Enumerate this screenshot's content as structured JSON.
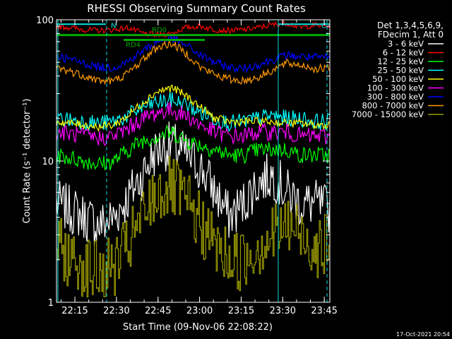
{
  "chart_data": {
    "type": "line",
    "title": "RHESSI Observing Summary Count Rates",
    "xlabel": "Start Time (09-Nov-06 22:08:22)",
    "ylabel": "Count Rate (s⁻¹ detector⁻¹)",
    "y_scale": "log",
    "ylim": [
      1,
      100
    ],
    "xlim": [
      "22:08:22",
      "23:47:00"
    ],
    "y_ticks": [
      "1",
      "10",
      "100"
    ],
    "x_ticks": [
      "22:15",
      "22:30",
      "22:45",
      "23:00",
      "23:15",
      "23:30",
      "23:45"
    ],
    "info_lines": [
      "Det 1,3,4,5,6,9,",
      "FDecim 1, Att 0"
    ],
    "footer": "17-Oct-2021 20:54",
    "flags": {
      "rd0": {
        "label": "RD0",
        "at": "22:42"
      },
      "rd4": {
        "label": "RD4",
        "at": "22:36"
      },
      "n": {
        "label": "N",
        "at": "22:29"
      },
      "c": {
        "label": "C",
        "at": "23:43"
      }
    },
    "series": [
      {
        "name": "3 - 6 keV",
        "color": "#ffffff",
        "shape": "orbit-low",
        "values": [
          5,
          4.5,
          4,
          3.5,
          4,
          5.5,
          8,
          12,
          13,
          11,
          9,
          6,
          4,
          5,
          7,
          8,
          6,
          5,
          5,
          4.5
        ]
      },
      {
        "name": "6 - 12 keV",
        "color": "#ff0000",
        "shape": "top",
        "values": [
          90,
          88,
          85,
          84,
          85,
          88,
          80,
          78,
          80,
          88,
          90,
          85,
          84,
          85,
          88,
          92,
          95,
          88,
          92,
          90
        ]
      },
      {
        "name": "12 - 25 keV",
        "color": "#00ff00",
        "shape": "noisy",
        "values": [
          11,
          10.5,
          10,
          9.5,
          10,
          12,
          14,
          15,
          16,
          14,
          13,
          12,
          11,
          11,
          12,
          12,
          12,
          11,
          11,
          11
        ]
      },
      {
        "name": "25 - 50 keV",
        "color": "#00ffff",
        "shape": "noisy",
        "values": [
          20,
          19.5,
          19,
          18.5,
          19,
          21,
          24,
          26,
          27,
          25,
          22,
          20,
          18.5,
          19,
          20,
          21,
          20,
          20,
          19,
          19
        ]
      },
      {
        "name": "50 - 100 keV",
        "color": "#ffff00",
        "shape": "dome",
        "values": [
          19,
          18.5,
          18,
          17.5,
          18,
          21,
          26,
          31,
          33,
          29,
          24,
          20,
          19,
          19,
          19,
          19,
          18.5,
          18.5,
          18,
          18
        ]
      },
      {
        "name": "100 - 300 keV",
        "color": "#ff00ff",
        "shape": "noisy",
        "values": [
          16,
          15.5,
          15,
          14.5,
          15,
          17,
          20,
          22,
          23,
          21,
          18,
          16,
          15,
          15,
          16,
          16,
          16,
          15,
          15,
          15
        ]
      },
      {
        "name": "300 - 800 keV",
        "color": "#0000ff",
        "shape": "dome",
        "values": [
          56,
          52,
          49,
          46,
          46,
          51,
          60,
          70,
          74,
          66,
          56,
          50,
          46,
          45,
          48,
          52,
          56,
          55,
          54,
          54
        ]
      },
      {
        "name": "800 - 7000 keV",
        "color": "#ff9900",
        "shape": "dome",
        "values": [
          46,
          43,
          40,
          37,
          37,
          42,
          52,
          64,
          68,
          58,
          46,
          41,
          38,
          37,
          39,
          44,
          49,
          48,
          45,
          45
        ]
      },
      {
        "name": "7000 - 15000 keV",
        "color": "#999900",
        "shape": "stepped",
        "values": [
          2.5,
          2,
          1.8,
          1.6,
          1.8,
          2.5,
          4,
          6,
          6.5,
          5,
          3.5,
          2.5,
          2,
          2,
          2.5,
          3,
          3.5,
          3,
          2.5,
          2.5
        ]
      }
    ]
  }
}
